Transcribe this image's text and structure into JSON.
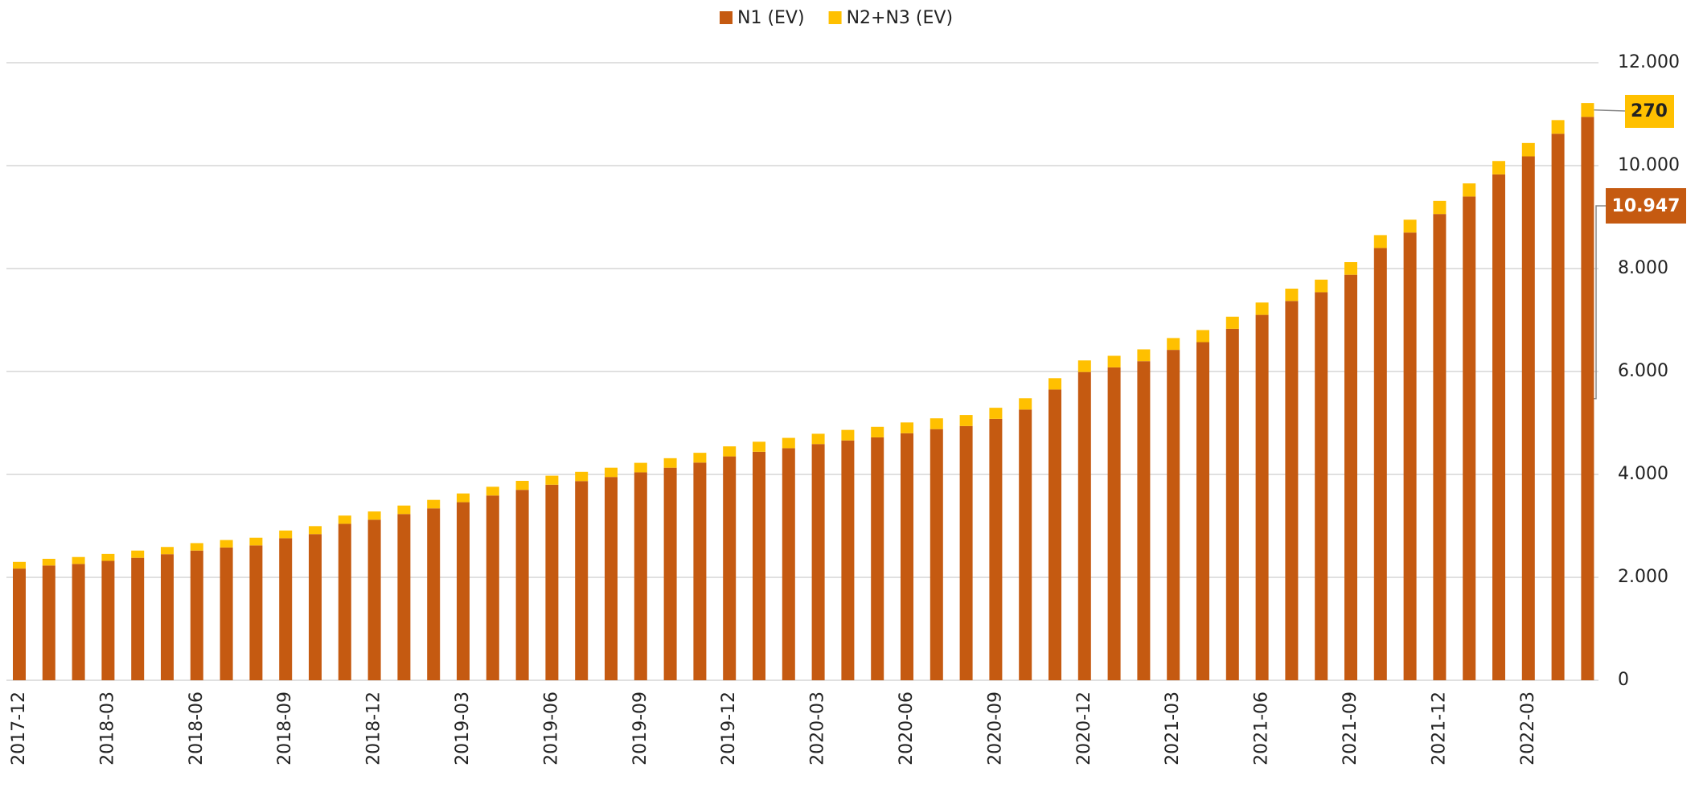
{
  "chart_data": {
    "type": "stacked_bar",
    "categories": [
      "2017-12",
      null,
      null,
      "2018-03",
      null,
      null,
      "2018-06",
      null,
      null,
      "2018-09",
      null,
      null,
      "2018-12",
      null,
      null,
      "2019-03",
      null,
      null,
      "2019-06",
      null,
      null,
      "2019-09",
      null,
      null,
      "2019-12",
      null,
      null,
      "2020-03",
      null,
      null,
      "2020-06",
      null,
      null,
      "2020-09",
      null,
      null,
      "2020-12",
      null,
      null,
      "2021-03",
      null,
      null,
      "2021-06",
      null,
      null,
      "2021-09",
      null,
      null,
      "2021-12",
      null,
      null,
      "2022-03",
      null,
      null
    ],
    "series": [
      {
        "name": "N1 (EV)",
        "color": "#c55a11",
        "values": [
          2170,
          2230,
          2260,
          2320,
          2380,
          2450,
          2520,
          2580,
          2620,
          2760,
          2840,
          3040,
          3120,
          3230,
          3340,
          3460,
          3590,
          3700,
          3800,
          3870,
          3950,
          4040,
          4130,
          4230,
          4350,
          4440,
          4510,
          4590,
          4660,
          4720,
          4800,
          4880,
          4940,
          5080,
          5260,
          5650,
          5990,
          6080,
          6200,
          6420,
          6570,
          6830,
          7100,
          7370,
          7540,
          7880,
          8400,
          8700,
          9060,
          9400,
          9830,
          10180,
          10620,
          10947
        ],
        "value_labels": [
          null,
          null,
          null,
          null,
          null,
          null,
          null,
          null,
          null,
          null,
          null,
          null,
          null,
          null,
          null,
          null,
          null,
          null,
          null,
          null,
          null,
          null,
          null,
          null,
          null,
          null,
          null,
          null,
          null,
          null,
          null,
          null,
          null,
          null,
          null,
          null,
          null,
          null,
          null,
          null,
          null,
          null,
          null,
          null,
          null,
          null,
          null,
          null,
          null,
          null,
          null,
          null,
          null,
          "10.947"
        ]
      },
      {
        "name": "N2+N3 (EV)",
        "color": "#ffc000",
        "values": [
          130,
          130,
          135,
          135,
          140,
          140,
          145,
          145,
          150,
          150,
          155,
          160,
          160,
          165,
          165,
          170,
          170,
          175,
          175,
          180,
          180,
          185,
          185,
          190,
          195,
          195,
          200,
          200,
          205,
          205,
          210,
          210,
          215,
          215,
          220,
          220,
          225,
          225,
          230,
          230,
          235,
          235,
          240,
          240,
          245,
          245,
          250,
          250,
          255,
          255,
          260,
          260,
          265,
          270
        ]
      }
    ],
    "ylim": [
      0,
      12000
    ],
    "yticks": [
      0,
      {
        "value": 2000,
        "label": "2.000"
      },
      {
        "value": 4000,
        "label": "4.000"
      },
      {
        "value": 6000,
        "label": "6.000"
      },
      {
        "value": 8000,
        "label": "8.000"
      },
      {
        "value": 10000,
        "label": "10.000"
      },
      {
        "value": 12000,
        "label": "12.000"
      }
    ],
    "grid": true,
    "legend": "top"
  }
}
